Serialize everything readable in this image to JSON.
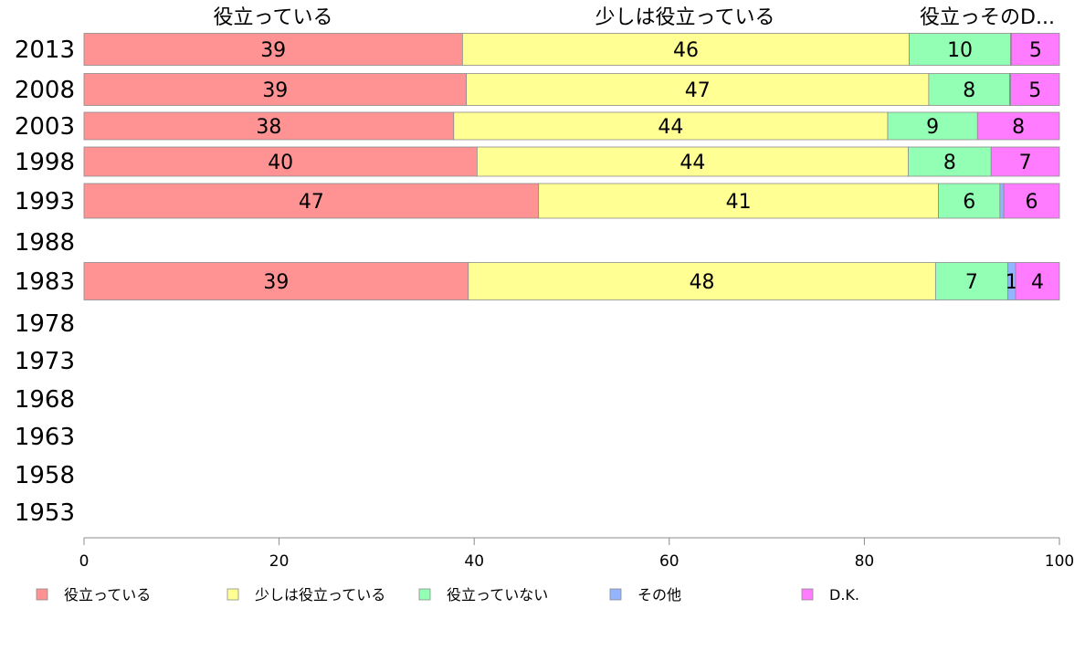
{
  "chart_data": {
    "type": "bar",
    "orientation": "horizontal",
    "stacked": true,
    "categories": [
      "2013",
      "2008",
      "2003",
      "1998",
      "1993",
      "1988",
      "1983",
      "1978",
      "1973",
      "1968",
      "1963",
      "1958",
      "1953"
    ],
    "series": [
      {
        "name": "役立っている",
        "color": "#ff9393",
        "values": [
          38.8,
          39.2,
          37.9,
          40.3,
          46.6,
          null,
          39.4,
          null,
          null,
          null,
          null,
          null,
          null
        ],
        "labels": [
          "39",
          "39",
          "38",
          "40",
          "47",
          "",
          "39",
          "",
          "",
          "",
          "",
          "",
          ""
        ]
      },
      {
        "name": "少しは役立っている",
        "color": "#ffff93",
        "values": [
          45.8,
          47.4,
          44.5,
          44.2,
          41.0,
          null,
          47.9,
          null,
          null,
          null,
          null,
          null,
          null
        ],
        "labels": [
          "46",
          "47",
          "44",
          "44",
          "41",
          "",
          "48",
          "",
          "",
          "",
          "",
          "",
          ""
        ]
      },
      {
        "name": "役立っていない",
        "color": "#93ffb4",
        "values": [
          10.4,
          8.3,
          9.2,
          8.5,
          6.3,
          null,
          7.4,
          null,
          null,
          null,
          null,
          null,
          null
        ],
        "labels": [
          "10",
          "8",
          "9",
          "8",
          "6",
          "",
          "7",
          "",
          "",
          "",
          "",
          "",
          ""
        ]
      },
      {
        "name": "その他",
        "color": "#93b4ff",
        "values": [
          0.1,
          0.1,
          0.0,
          0.0,
          0.4,
          null,
          0.8,
          null,
          null,
          null,
          null,
          null,
          null
        ],
        "labels": [
          "",
          "",
          "",
          "",
          "",
          "",
          "1",
          "",
          "",
          "",
          "",
          "",
          ""
        ]
      },
      {
        "name": "D.K.",
        "color": "#ff7bff",
        "values": [
          4.9,
          5.0,
          8.4,
          7.0,
          5.7,
          null,
          4.5,
          null,
          null,
          null,
          null,
          null,
          null
        ],
        "labels": [
          "5",
          "5",
          "8",
          "7",
          "6",
          "",
          "4",
          "",
          "",
          "",
          "",
          "",
          ""
        ]
      }
    ],
    "column_headers": [
      "役立っている",
      "少しは役立っている",
      "役立っそのD..."
    ],
    "xlim": [
      0,
      100
    ],
    "xticks": [
      "0",
      "20",
      "40",
      "60",
      "80",
      "100"
    ],
    "grid": false,
    "legend_position": "bottom"
  }
}
